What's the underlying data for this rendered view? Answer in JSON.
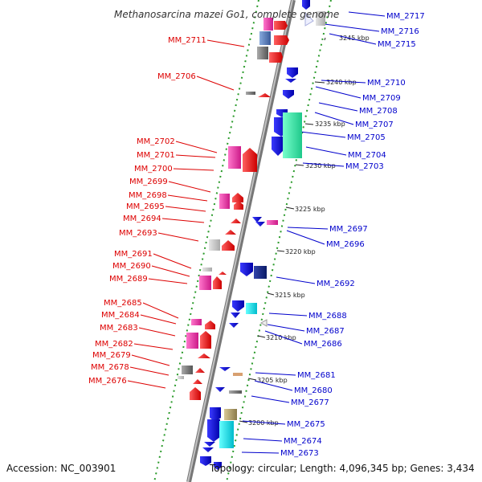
{
  "title": "Methanosarcina mazei Go1, complete genome",
  "footer": {
    "accession": "Accession: NC_003901",
    "topology": "Topology: circular; Length: 4,096,345 bp; Genes: 3,434"
  },
  "colors": {
    "left_labels": "#dd0000",
    "right_labels": "#0000cc",
    "backbone": "#8a8a8a",
    "tracks": "#2a9a2a"
  },
  "ticks": [
    "3245 kbp",
    "3240 kbp",
    "3235 kbp",
    "3230 kbp",
    "3225 kbp",
    "3220 kbp",
    "3215 kbp",
    "3210 kbp",
    "3205 kbp",
    "3200 kbp"
  ],
  "left_labels": [
    "MM_2711",
    "MM_2706",
    "MM_2702",
    "MM_2701",
    "MM_2700",
    "MM_2699",
    "MM_2698",
    "MM_2695",
    "MM_2694",
    "MM_2693",
    "MM_2691",
    "MM_2690",
    "MM_2689",
    "MM_2685",
    "MM_2684",
    "MM_2683",
    "MM_2682",
    "MM_2679",
    "MM_2678",
    "MM_2676"
  ],
  "right_labels": [
    "MM_2717",
    "MM_2716",
    "MM_2715",
    "MM_2710",
    "MM_2709",
    "MM_2708",
    "MM_2707",
    "MM_2705",
    "MM_2704",
    "MM_2703",
    "MM_2697",
    "MM_2696",
    "MM_2692",
    "MM_2688",
    "MM_2687",
    "MM_2686",
    "MM_2681",
    "MM_2680",
    "MM_2677",
    "MM_2675",
    "MM_2674",
    "MM_2673"
  ]
}
